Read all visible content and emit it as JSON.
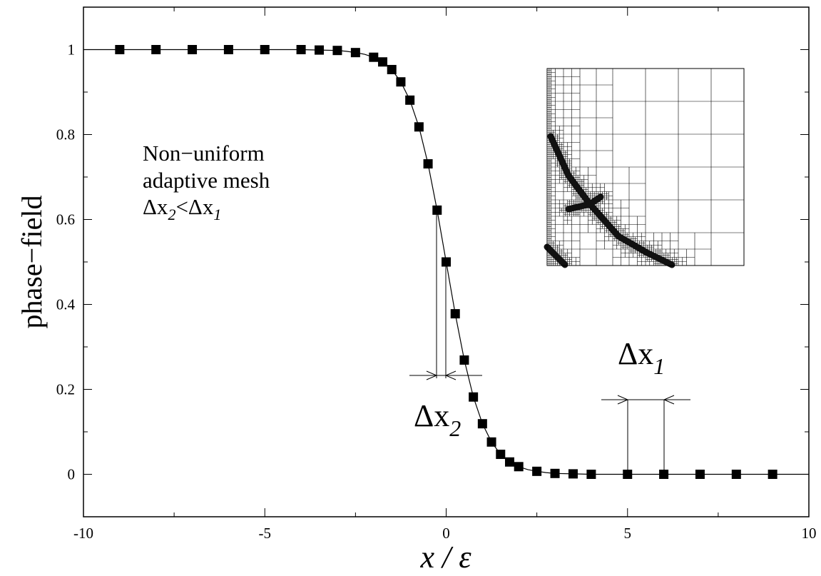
{
  "chart_data": {
    "type": "scatter",
    "xlabel": "x / ε",
    "ylabel": "phase−field",
    "xlim": [
      -10,
      10
    ],
    "ylim": [
      -0.1,
      1.1
    ],
    "xticks": [
      -10,
      -5,
      0,
      5,
      10
    ],
    "yticks": [
      0,
      0.2,
      0.4,
      0.6,
      0.8,
      1
    ],
    "xminorticks": [
      -7.5,
      -2.5,
      2.5,
      7.5
    ],
    "yminorticks": [
      0.1,
      0.3,
      0.5,
      0.7,
      0.9
    ],
    "color": "#000000",
    "points": {
      "x": [
        -9,
        -8,
        -7,
        -6,
        -5,
        -4,
        -3.5,
        -3,
        -2.5,
        -2,
        -1.75,
        -1.5,
        -1.25,
        -1,
        -0.75,
        -0.5,
        -0.25,
        0,
        0.25,
        0.5,
        0.75,
        1,
        1.25,
        1.5,
        1.75,
        2,
        2.5,
        3,
        3.5,
        4,
        5,
        6,
        7,
        8,
        9
      ],
      "values": [
        1,
        1,
        1,
        1,
        1,
        1,
        0.999,
        0.998,
        0.993,
        0.982,
        0.971,
        0.953,
        0.924,
        0.881,
        0.818,
        0.731,
        0.622,
        0.5,
        0.378,
        0.269,
        0.182,
        0.119,
        0.076,
        0.047,
        0.029,
        0.018,
        0.007,
        0.002,
        0.001,
        0,
        0,
        0,
        0,
        0,
        0
      ]
    },
    "curve": {
      "x": [
        -10,
        -9,
        -8,
        -7,
        -6,
        -5,
        -4,
        -3.5,
        -3,
        -2.75,
        -2.5,
        -2.25,
        -2,
        -1.75,
        -1.5,
        -1.25,
        -1,
        -0.75,
        -0.5,
        -0.25,
        0,
        0.25,
        0.5,
        0.75,
        1,
        1.25,
        1.5,
        1.75,
        2,
        2.25,
        2.5,
        2.75,
        3,
        3.5,
        4,
        5,
        6,
        7,
        8,
        9,
        10
      ],
      "values": [
        1,
        1,
        1,
        1,
        1,
        1,
        1,
        0.999,
        0.998,
        0.996,
        0.993,
        0.989,
        0.982,
        0.971,
        0.953,
        0.924,
        0.881,
        0.818,
        0.731,
        0.622,
        0.5,
        0.378,
        0.269,
        0.182,
        0.119,
        0.076,
        0.047,
        0.029,
        0.018,
        0.011,
        0.007,
        0.004,
        0.002,
        0.001,
        0,
        0,
        0,
        0,
        0,
        0,
        0
      ]
    },
    "annotation": [
      "Non−uniform",
      "adaptive mesh"
    ],
    "annotation_formula": {
      "base1": "Δx",
      "sub1": "2",
      "mid": "<Δx",
      "sub2": "1"
    },
    "dx2_label": {
      "base": "Δx",
      "sub": "2"
    },
    "dx1_label": {
      "base": "Δx",
      "sub": "1"
    }
  }
}
